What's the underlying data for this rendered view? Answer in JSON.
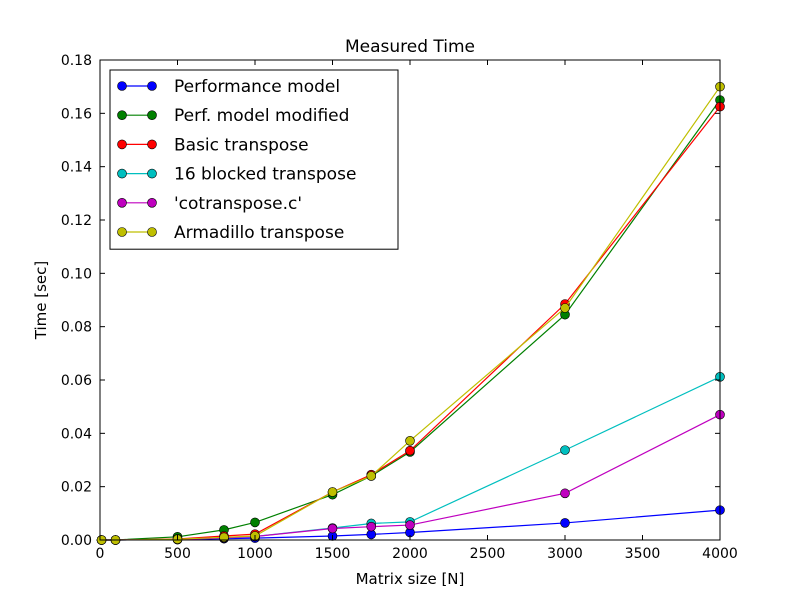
{
  "chart_data": {
    "type": "line",
    "title": "Measured Time",
    "xlabel": "Matrix size [N]",
    "ylabel": "Time [sec]",
    "xlim": [
      0,
      4000
    ],
    "ylim": [
      0,
      0.18
    ],
    "xticks": [
      0,
      500,
      1000,
      1500,
      2000,
      2500,
      3000,
      3500,
      4000
    ],
    "yticks": [
      0.0,
      0.02,
      0.04,
      0.06,
      0.08,
      0.1,
      0.12,
      0.14,
      0.16,
      0.18
    ],
    "xtick_labels": [
      "0",
      "500",
      "1000",
      "1500",
      "2000",
      "2500",
      "3000",
      "3500",
      "4000"
    ],
    "ytick_labels": [
      "0.00",
      "0.02",
      "0.04",
      "0.06",
      "0.08",
      "0.10",
      "0.12",
      "0.14",
      "0.16",
      "0.18"
    ],
    "grid": false,
    "legend_position": "top-left",
    "x": [
      10,
      100,
      500,
      800,
      1000,
      1500,
      1750,
      2000,
      3000,
      4000
    ],
    "series": [
      {
        "name": "Performance model",
        "color": "#0000ff",
        "values": [
          0.0,
          0.0,
          0.0002,
          0.0005,
          0.0007,
          0.0015,
          0.0021,
          0.0028,
          0.0064,
          0.0112
        ]
      },
      {
        "name": "Perf. model modified",
        "color": "#008000",
        "values": [
          0.0,
          0.0,
          0.0012,
          0.0038,
          0.0066,
          0.017,
          0.024,
          0.033,
          0.0845,
          0.165
        ]
      },
      {
        "name": "Basic transpose",
        "color": "#ff0000",
        "values": [
          0.0,
          0.0,
          0.0004,
          0.0015,
          0.0022,
          0.018,
          0.0245,
          0.0335,
          0.0885,
          0.1625
        ]
      },
      {
        "name": "16 blocked transpose",
        "color": "#00bfbf",
        "values": [
          0.0,
          0.0,
          0.0002,
          0.0008,
          0.0013,
          0.0045,
          0.0062,
          0.0068,
          0.0337,
          0.0612
        ]
      },
      {
        "name": "'cotranspose.c'",
        "color": "#bf00bf",
        "values": [
          0.0,
          0.0,
          0.0002,
          0.0008,
          0.0013,
          0.0043,
          0.005,
          0.0056,
          0.0175,
          0.047
        ]
      },
      {
        "name": "Armadillo transpose",
        "color": "#bfbf00",
        "values": [
          0.0,
          0.0,
          0.0003,
          0.001,
          0.0015,
          0.018,
          0.024,
          0.0372,
          0.087,
          0.17
        ]
      }
    ]
  }
}
